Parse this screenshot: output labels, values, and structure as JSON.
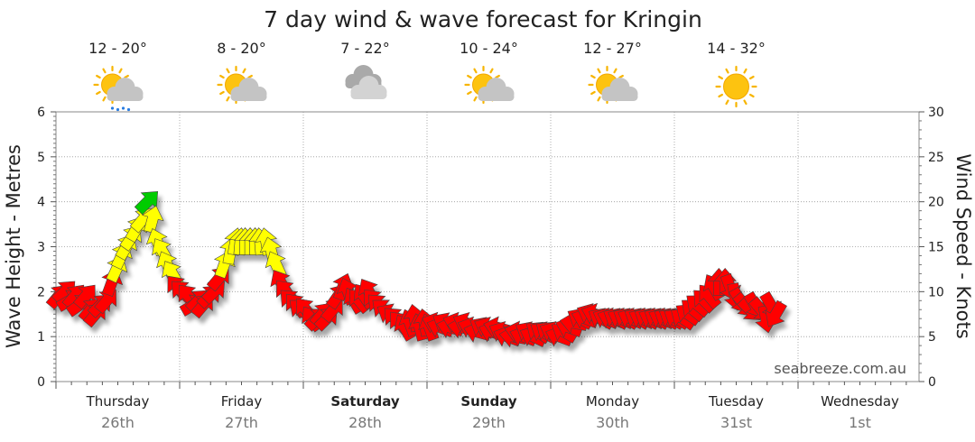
{
  "chart_data": {
    "type": "scatter",
    "title": "7 day wind & wave forecast for Kringin",
    "ylabel_left": "Wave Height - Metres",
    "ylabel_right": "Wind Speed - Knots",
    "ylim_left": [
      0,
      6
    ],
    "ylim_right": [
      0,
      30
    ],
    "left_ticks": [
      "0",
      "1",
      "2",
      "3",
      "4",
      "5",
      "6"
    ],
    "right_ticks": [
      "0",
      "5",
      "10",
      "15",
      "20",
      "25",
      "30"
    ],
    "grid": true,
    "credit": "seabreeze.com.au",
    "days": [
      {
        "day": "Thursday",
        "date": "26th",
        "bold": false,
        "temp": "12 - 20°",
        "weather_icon": "sun-cloud-rain-icon"
      },
      {
        "day": "Friday",
        "date": "27th",
        "bold": false,
        "temp": "8 - 20°",
        "weather_icon": "sun-cloud-icon"
      },
      {
        "day": "Saturday",
        "date": "28th",
        "bold": true,
        "temp": "7 - 22°",
        "weather_icon": "cloud-icon"
      },
      {
        "day": "Sunday",
        "date": "29th",
        "bold": true,
        "temp": "10 - 24°",
        "weather_icon": "sun-cloud-icon"
      },
      {
        "day": "Monday",
        "date": "30th",
        "bold": false,
        "temp": "12 - 27°",
        "weather_icon": "sun-cloud-icon"
      },
      {
        "day": "Tuesday",
        "date": "31st",
        "bold": false,
        "temp": "14 - 32°",
        "weather_icon": "sun-icon"
      },
      {
        "day": "Wednesday",
        "date": "1st",
        "bold": false,
        "temp": "",
        "weather_icon": ""
      }
    ],
    "colors": {
      "light": "#ff0000",
      "moderate": "#ffff00",
      "strong": "#00cc00"
    },
    "series": [
      {
        "name": "",
        "comment_units": "t in days from start of Thursday; speed in knots; dir in degrees the arrow points (0=up, clockwise)",
        "points": [
          {
            "t": 0.02,
            "speed": 9.5,
            "dir": 40
          },
          {
            "t": 0.07,
            "speed": 10,
            "dir": 45
          },
          {
            "t": 0.11,
            "speed": 9,
            "dir": 60
          },
          {
            "t": 0.15,
            "speed": 9.5,
            "dir": 40
          },
          {
            "t": 0.19,
            "speed": 8.5,
            "dir": 55
          },
          {
            "t": 0.24,
            "speed": 9.5,
            "dir": 40
          },
          {
            "t": 0.28,
            "speed": 8,
            "dir": 40
          },
          {
            "t": 0.32,
            "speed": 7.5,
            "dir": 40
          },
          {
            "t": 0.36,
            "speed": 8.5,
            "dir": 45
          },
          {
            "t": 0.41,
            "speed": 9,
            "dir": 40
          },
          {
            "t": 0.45,
            "speed": 11,
            "dir": 20
          },
          {
            "t": 0.49,
            "speed": 12.5,
            "dir": 25
          },
          {
            "t": 0.53,
            "speed": 14,
            "dir": 25
          },
          {
            "t": 0.57,
            "speed": 15,
            "dir": 30
          },
          {
            "t": 0.61,
            "speed": 16,
            "dir": 35
          },
          {
            "t": 0.65,
            "speed": 17,
            "dir": 30
          },
          {
            "t": 0.7,
            "speed": 18,
            "dir": 40
          },
          {
            "t": 0.74,
            "speed": 20,
            "dir": 45
          },
          {
            "t": 0.78,
            "speed": 18,
            "dir": 15
          },
          {
            "t": 0.82,
            "speed": 15.5,
            "dir": -20
          },
          {
            "t": 0.86,
            "speed": 14.5,
            "dir": -30
          },
          {
            "t": 0.9,
            "speed": 13,
            "dir": -25
          },
          {
            "t": 0.94,
            "speed": 12,
            "dir": -30
          },
          {
            "t": 0.98,
            "speed": 10.5,
            "dir": -40
          },
          {
            "t": 1.02,
            "speed": 10,
            "dir": -45
          },
          {
            "t": 1.07,
            "speed": 9.5,
            "dir": -40
          },
          {
            "t": 1.11,
            "speed": 8.5,
            "dir": 60
          },
          {
            "t": 1.15,
            "speed": 9,
            "dir": 45
          },
          {
            "t": 1.19,
            "speed": 8.5,
            "dir": 40
          },
          {
            "t": 1.24,
            "speed": 9.5,
            "dir": 45
          },
          {
            "t": 1.28,
            "speed": 10,
            "dir": 45
          },
          {
            "t": 1.32,
            "speed": 11.5,
            "dir": 40
          },
          {
            "t": 1.36,
            "speed": 13,
            "dir": 20
          },
          {
            "t": 1.41,
            "speed": 14.5,
            "dir": 10
          },
          {
            "t": 1.45,
            "speed": 15.5,
            "dir": 10
          },
          {
            "t": 1.49,
            "speed": 15.5,
            "dir": 5
          },
          {
            "t": 1.53,
            "speed": 15.5,
            "dir": 0
          },
          {
            "t": 1.57,
            "speed": 15.5,
            "dir": 0
          },
          {
            "t": 1.61,
            "speed": 15.5,
            "dir": 0
          },
          {
            "t": 1.65,
            "speed": 15.5,
            "dir": -5
          },
          {
            "t": 1.7,
            "speed": 15.5,
            "dir": -10
          },
          {
            "t": 1.74,
            "speed": 14.5,
            "dir": -15
          },
          {
            "t": 1.78,
            "speed": 13,
            "dir": -25
          },
          {
            "t": 1.82,
            "speed": 11,
            "dir": -30
          },
          {
            "t": 1.86,
            "speed": 10,
            "dir": -40
          },
          {
            "t": 1.9,
            "speed": 9,
            "dir": -45
          },
          {
            "t": 1.94,
            "speed": 8.5,
            "dir": -40
          },
          {
            "t": 1.98,
            "speed": 8,
            "dir": -50
          },
          {
            "t": 2.02,
            "speed": 8,
            "dir": -40
          },
          {
            "t": 2.07,
            "speed": 7,
            "dir": -35
          },
          {
            "t": 2.11,
            "speed": 7,
            "dir": 45
          },
          {
            "t": 2.15,
            "speed": 7.5,
            "dir": 40
          },
          {
            "t": 2.19,
            "speed": 7,
            "dir": 45
          },
          {
            "t": 2.24,
            "speed": 8,
            "dir": 40
          },
          {
            "t": 2.28,
            "speed": 9.5,
            "dir": 35
          },
          {
            "t": 2.32,
            "speed": 10.5,
            "dir": 20
          },
          {
            "t": 2.36,
            "speed": 10,
            "dir": -20
          },
          {
            "t": 2.41,
            "speed": 9,
            "dir": -30
          },
          {
            "t": 2.45,
            "speed": 9,
            "dir": -40
          },
          {
            "t": 2.49,
            "speed": 9.5,
            "dir": -35
          },
          {
            "t": 2.53,
            "speed": 10,
            "dir": -30
          },
          {
            "t": 2.57,
            "speed": 9,
            "dir": -40
          },
          {
            "t": 2.61,
            "speed": 8.5,
            "dir": -45
          },
          {
            "t": 2.65,
            "speed": 8,
            "dir": -50
          },
          {
            "t": 2.7,
            "speed": 7.5,
            "dir": -60
          },
          {
            "t": 2.74,
            "speed": 7,
            "dir": -45
          },
          {
            "t": 2.78,
            "speed": 6.5,
            "dir": -40
          },
          {
            "t": 2.82,
            "speed": 6,
            "dir": -30
          },
          {
            "t": 2.86,
            "speed": 6.5,
            "dir": -20
          },
          {
            "t": 2.9,
            "speed": 7,
            "dir": -10
          },
          {
            "t": 2.94,
            "speed": 6,
            "dir": -15
          },
          {
            "t": 2.98,
            "speed": 6.5,
            "dir": -10
          },
          {
            "t": 3.02,
            "speed": 6,
            "dir": -20
          },
          {
            "t": 3.07,
            "speed": 6.5,
            "dir": -70
          },
          {
            "t": 3.11,
            "speed": 6,
            "dir": -70
          },
          {
            "t": 3.15,
            "speed": 6.5,
            "dir": -60
          },
          {
            "t": 3.19,
            "speed": 6,
            "dir": -75
          },
          {
            "t": 3.24,
            "speed": 6.5,
            "dir": -70
          },
          {
            "t": 3.28,
            "speed": 6,
            "dir": -80
          },
          {
            "t": 3.32,
            "speed": 6.5,
            "dir": -65
          },
          {
            "t": 3.36,
            "speed": 6,
            "dir": -70
          },
          {
            "t": 3.41,
            "speed": 5.5,
            "dir": -75
          },
          {
            "t": 3.45,
            "speed": 6,
            "dir": -60
          },
          {
            "t": 3.49,
            "speed": 6,
            "dir": -65
          },
          {
            "t": 3.53,
            "speed": 5.5,
            "dir": -70
          },
          {
            "t": 3.57,
            "speed": 6,
            "dir": -75
          },
          {
            "t": 3.61,
            "speed": 5.5,
            "dir": -65
          },
          {
            "t": 3.65,
            "speed": 5,
            "dir": -70
          },
          {
            "t": 3.7,
            "speed": 5,
            "dir": -80
          },
          {
            "t": 3.74,
            "speed": 5.5,
            "dir": -75
          },
          {
            "t": 3.78,
            "speed": 5,
            "dir": -70
          },
          {
            "t": 3.82,
            "speed": 5.5,
            "dir": -60
          },
          {
            "t": 3.86,
            "speed": 5,
            "dir": -65
          },
          {
            "t": 3.9,
            "speed": 5.5,
            "dir": -55
          },
          {
            "t": 3.94,
            "speed": 5.5,
            "dir": -60
          },
          {
            "t": 3.98,
            "speed": 5.5,
            "dir": -55
          },
          {
            "t": 4.02,
            "speed": 5.5,
            "dir": -65
          },
          {
            "t": 4.07,
            "speed": 5,
            "dir": -70
          },
          {
            "t": 4.11,
            "speed": 5.5,
            "dir": -60
          },
          {
            "t": 4.15,
            "speed": 6,
            "dir": -70
          },
          {
            "t": 4.19,
            "speed": 6.5,
            "dir": -80
          },
          {
            "t": 4.24,
            "speed": 7,
            "dir": -60
          },
          {
            "t": 4.28,
            "speed": 7,
            "dir": -70
          },
          {
            "t": 4.32,
            "speed": 7.5,
            "dir": -65
          },
          {
            "t": 4.36,
            "speed": 7.5,
            "dir": -70
          },
          {
            "t": 4.41,
            "speed": 7,
            "dir": -60
          },
          {
            "t": 4.45,
            "speed": 7,
            "dir": -65
          },
          {
            "t": 4.49,
            "speed": 7,
            "dir": -70
          },
          {
            "t": 4.53,
            "speed": 7,
            "dir": -60
          },
          {
            "t": 4.57,
            "speed": 7,
            "dir": -65
          },
          {
            "t": 4.61,
            "speed": 7,
            "dir": -60
          },
          {
            "t": 4.65,
            "speed": 7,
            "dir": -65
          },
          {
            "t": 4.7,
            "speed": 7,
            "dir": -60
          },
          {
            "t": 4.74,
            "speed": 7,
            "dir": -65
          },
          {
            "t": 4.78,
            "speed": 7,
            "dir": -60
          },
          {
            "t": 4.82,
            "speed": 7,
            "dir": -65
          },
          {
            "t": 4.86,
            "speed": 7,
            "dir": -60
          },
          {
            "t": 4.9,
            "speed": 7,
            "dir": -65
          },
          {
            "t": 4.94,
            "speed": 7,
            "dir": -60
          },
          {
            "t": 4.98,
            "speed": 7,
            "dir": -60
          },
          {
            "t": 5.02,
            "speed": 7,
            "dir": -60
          },
          {
            "t": 5.07,
            "speed": 7,
            "dir": -55
          },
          {
            "t": 5.11,
            "speed": 7.5,
            "dir": -55
          },
          {
            "t": 5.15,
            "speed": 8,
            "dir": -50
          },
          {
            "t": 5.19,
            "speed": 8.5,
            "dir": -50
          },
          {
            "t": 5.24,
            "speed": 9,
            "dir": -45
          },
          {
            "t": 5.28,
            "speed": 9.5,
            "dir": -40
          },
          {
            "t": 5.32,
            "speed": 10.5,
            "dir": -30
          },
          {
            "t": 5.36,
            "speed": 11,
            "dir": 0
          },
          {
            "t": 5.41,
            "speed": 11,
            "dir": 0
          },
          {
            "t": 5.45,
            "speed": 10.5,
            "dir": 160
          },
          {
            "t": 5.49,
            "speed": 9.5,
            "dir": 170
          },
          {
            "t": 5.53,
            "speed": 9,
            "dir": 150
          },
          {
            "t": 5.57,
            "speed": 8.5,
            "dir": 140
          },
          {
            "t": 5.61,
            "speed": 8,
            "dir": 135
          },
          {
            "t": 5.65,
            "speed": 8.5,
            "dir": 150
          },
          {
            "t": 5.7,
            "speed": 8,
            "dir": 140
          },
          {
            "t": 5.74,
            "speed": 7,
            "dir": 170
          },
          {
            "t": 5.78,
            "speed": 8.5,
            "dir": 150
          },
          {
            "t": 5.82,
            "speed": 7.5,
            "dir": -150
          }
        ]
      }
    ]
  }
}
